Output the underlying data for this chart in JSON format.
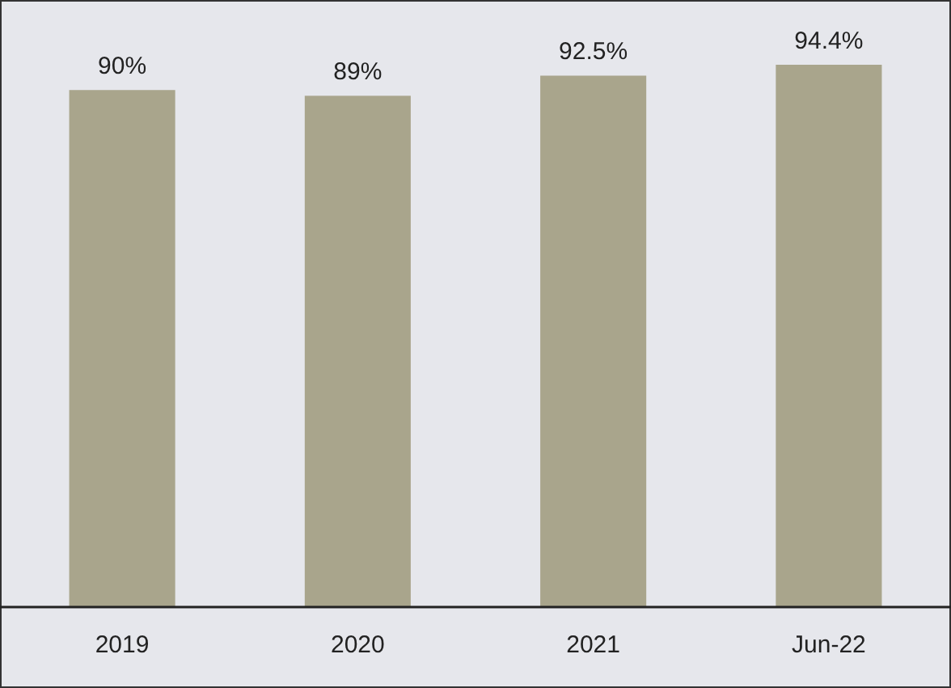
{
  "chart_data": {
    "type": "bar",
    "categories": [
      "2019",
      "2020",
      "2021",
      "Jun-22"
    ],
    "values": [
      90,
      89,
      92.5,
      94.4
    ],
    "value_labels": [
      "90%",
      "89%",
      "92.5%",
      "94.4%"
    ],
    "color": "#a9a58c",
    "tick_labels": "x"
  }
}
